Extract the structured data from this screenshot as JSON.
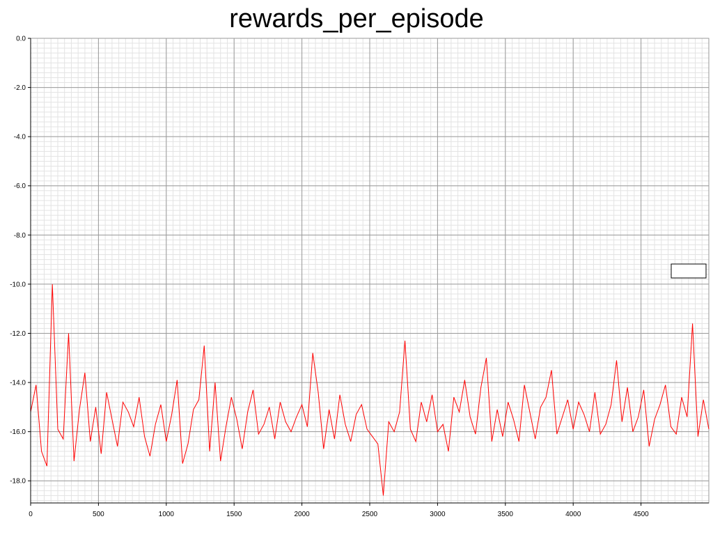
{
  "chart_data": {
    "type": "line",
    "title": "rewards_per_episode",
    "xlabel": "",
    "ylabel": "",
    "xlim": [
      0,
      5000
    ],
    "ylim": [
      -18.9,
      0
    ],
    "x_ticks": [
      "0",
      "500",
      "1000",
      "1500",
      "2000",
      "2500",
      "3000",
      "3500",
      "4000",
      "4500"
    ],
    "y_ticks": [
      "0.0",
      "-2.0",
      "-4.0",
      "-6.0",
      "-8.0",
      "-10.0",
      "-12.0",
      "-14.0",
      "-16.0",
      "-18.0"
    ],
    "grid": true,
    "legend": {
      "placement": "right",
      "entries": []
    },
    "series": [
      {
        "color": "#ff0000",
        "x_step": 40,
        "values": [
          -15.2,
          -14.1,
          -16.8,
          -17.4,
          -10.0,
          -15.9,
          -16.3,
          -12.0,
          -17.2,
          -15.1,
          -13.6,
          -16.4,
          -15.0,
          -16.9,
          -14.4,
          -15.5,
          -16.6,
          -14.8,
          -15.2,
          -15.8,
          -14.6,
          -16.2,
          -17.0,
          -15.7,
          -14.9,
          -16.4,
          -15.3,
          -13.9,
          -17.3,
          -16.5,
          -15.1,
          -14.7,
          -12.5,
          -16.8,
          -14.0,
          -17.2,
          -15.8,
          -14.6,
          -15.5,
          -16.7,
          -15.2,
          -14.3,
          -16.1,
          -15.7,
          -15.0,
          -16.3,
          -14.8,
          -15.6,
          -16.0,
          -15.4,
          -14.9,
          -15.8,
          -12.8,
          -14.4,
          -16.7,
          -15.1,
          -16.3,
          -14.5,
          -15.7,
          -16.4,
          -15.3,
          -14.9,
          -15.9,
          -16.2,
          -16.5,
          -18.6,
          -15.6,
          -16.0,
          -15.2,
          -12.3,
          -15.9,
          -16.4,
          -14.8,
          -15.6,
          -14.5,
          -16.0,
          -15.7,
          -16.8,
          -14.6,
          -15.2,
          -13.9,
          -15.4,
          -16.1,
          -14.2,
          -13.0,
          -16.4,
          -15.1,
          -16.2,
          -14.8,
          -15.5,
          -16.4,
          -14.1,
          -15.2,
          -16.3,
          -15.0,
          -14.6,
          -13.5,
          -16.1,
          -15.4,
          -14.7,
          -15.9,
          -14.8,
          -15.3,
          -16.0,
          -14.4,
          -16.1,
          -15.7,
          -14.9,
          -13.1,
          -15.6,
          -14.2,
          -16.0,
          -15.4,
          -14.3,
          -16.6,
          -15.5,
          -14.9,
          -14.1,
          -15.8,
          -16.1,
          -14.6,
          -15.4,
          -11.6,
          -16.2,
          -14.7,
          -15.9
        ]
      }
    ]
  }
}
